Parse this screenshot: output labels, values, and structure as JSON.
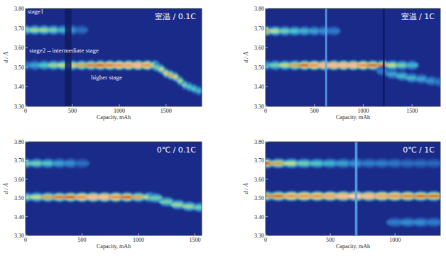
{
  "chart_data": [
    {
      "type": "heatmap",
      "title": "室温 / 0.1C",
      "x_label": "Capacity, mAh",
      "y_label": "d / Å",
      "xlim": [
        0,
        1880
      ],
      "xticks": [
        0,
        500,
        1000,
        1500
      ],
      "ylim": [
        3.3,
        3.8
      ],
      "yticks": [
        {
          "value": 3.3,
          "label": "3.30"
        },
        {
          "value": 3.4,
          "label": "3.40"
        },
        {
          "value": 3.5,
          "label": "3.50"
        },
        {
          "value": 3.6,
          "label": "3.60"
        },
        {
          "value": 3.7,
          "label": "3.70"
        },
        {
          "value": 3.8,
          "label": "3.80"
        }
      ],
      "zlim": [
        0,
        1
      ],
      "ridges": [
        {
          "x": [
            0,
            100,
            200,
            300,
            400,
            500,
            600
          ],
          "y": [
            3.69,
            3.69,
            3.69,
            3.69,
            3.69,
            3.69,
            3.69
          ],
          "intensity": [
            0.55,
            0.6,
            0.6,
            0.55,
            0.45,
            0.35,
            0.25
          ]
        },
        {
          "x": [
            0,
            100,
            200,
            300,
            400,
            500,
            600,
            700,
            800,
            900,
            1000,
            1100,
            1200,
            1300,
            1380
          ],
          "y": [
            3.51,
            3.51,
            3.51,
            3.51,
            3.51,
            3.51,
            3.51,
            3.51,
            3.51,
            3.51,
            3.51,
            3.51,
            3.51,
            3.51,
            3.51
          ],
          "intensity": [
            0.3,
            0.4,
            0.5,
            0.6,
            0.65,
            0.7,
            0.75,
            0.8,
            0.85,
            0.88,
            0.9,
            0.92,
            0.95,
            0.9,
            0.7
          ]
        },
        {
          "x": [
            1400,
            1450,
            1500,
            1550,
            1600,
            1650,
            1700,
            1750,
            1800,
            1850
          ],
          "y": [
            3.5,
            3.49,
            3.47,
            3.46,
            3.45,
            3.43,
            3.41,
            3.4,
            3.39,
            3.38
          ],
          "intensity": [
            0.55,
            0.65,
            0.7,
            0.75,
            0.7,
            0.6,
            0.55,
            0.5,
            0.5,
            0.45
          ]
        }
      ],
      "stripes": [
        {
          "x": [
            420,
            490
          ],
          "color": "#101c5e"
        }
      ],
      "annotations": [
        {
          "text": "stage1",
          "x": 20,
          "y": 3.785
        },
        {
          "text": "stage2→intermediate stage",
          "x": 40,
          "y": 3.585
        },
        {
          "text": "higher stage",
          "x": 700,
          "y": 3.45
        }
      ]
    },
    {
      "type": "heatmap",
      "title": "室温 / 1C",
      "x_label": "Capacity, mAh",
      "y_label": "d / Å",
      "xlim": [
        0,
        1790
      ],
      "xticks": [
        0,
        500,
        1000,
        1500
      ],
      "ylim": [
        3.3,
        3.8
      ],
      "yticks": [
        {
          "value": 3.3,
          "label": "3.30"
        },
        {
          "value": 3.4,
          "label": "3.40"
        },
        {
          "value": 3.5,
          "label": "3.50"
        },
        {
          "value": 3.6,
          "label": "3.60"
        },
        {
          "value": 3.7,
          "label": "3.70"
        },
        {
          "value": 3.8,
          "label": "3.80"
        }
      ],
      "zlim": [
        0,
        1
      ],
      "ridges": [
        {
          "x": [
            0,
            100,
            200,
            300,
            400,
            500,
            600,
            700
          ],
          "y": [
            3.685,
            3.685,
            3.685,
            3.685,
            3.685,
            3.685,
            3.685,
            3.685
          ],
          "intensity": [
            0.75,
            0.65,
            0.55,
            0.5,
            0.45,
            0.4,
            0.35,
            0.3
          ]
        },
        {
          "x": [
            0,
            100,
            200,
            300,
            400,
            500,
            600,
            700,
            800,
            900,
            1000,
            1100,
            1200,
            1300,
            1400,
            1500
          ],
          "y": [
            3.51,
            3.51,
            3.51,
            3.51,
            3.51,
            3.51,
            3.51,
            3.51,
            3.51,
            3.51,
            3.51,
            3.51,
            3.51,
            3.51,
            3.51,
            3.51
          ],
          "intensity": [
            0.45,
            0.55,
            0.65,
            0.75,
            0.85,
            0.9,
            0.95,
            0.95,
            0.95,
            0.95,
            0.9,
            0.85,
            0.8,
            0.65,
            0.55,
            0.45
          ]
        },
        {
          "x": [
            1200,
            1300,
            1400,
            1500,
            1600,
            1700,
            1780
          ],
          "y": [
            3.48,
            3.465,
            3.455,
            3.445,
            3.44,
            3.43,
            3.425
          ],
          "intensity": [
            0.3,
            0.4,
            0.45,
            0.45,
            0.4,
            0.35,
            0.3
          ]
        }
      ],
      "stripes": [
        {
          "x": [
            610,
            630
          ],
          "color": "#5aa8f0"
        },
        {
          "x": [
            1200,
            1220
          ],
          "color": "#0c1660"
        }
      ],
      "annotations": []
    },
    {
      "type": "heatmap",
      "title": "0℃ / 0.1C",
      "x_label": "Capacity, mAh",
      "y_label": "d / Å",
      "xlim": [
        0,
        1560
      ],
      "xticks": [
        0,
        500,
        1000,
        1500
      ],
      "ylim": [
        3.3,
        3.8
      ],
      "yticks": [
        {
          "value": 3.3,
          "label": "3.30"
        },
        {
          "value": 3.4,
          "label": "3.40"
        },
        {
          "value": 3.5,
          "label": "3.50"
        },
        {
          "value": 3.6,
          "label": "3.60"
        },
        {
          "value": 3.7,
          "label": "3.70"
        },
        {
          "value": 3.8,
          "label": "3.80"
        }
      ],
      "zlim": [
        0,
        1
      ],
      "ridges": [
        {
          "x": [
            0,
            100,
            200,
            300,
            400,
            500
          ],
          "y": [
            3.685,
            3.685,
            3.685,
            3.685,
            3.685,
            3.685
          ],
          "intensity": [
            0.55,
            0.55,
            0.5,
            0.4,
            0.35,
            0.25
          ]
        },
        {
          "x": [
            0,
            100,
            200,
            300,
            400,
            500,
            600,
            700,
            800,
            900,
            1000,
            1100
          ],
          "y": [
            3.505,
            3.505,
            3.505,
            3.505,
            3.505,
            3.505,
            3.505,
            3.505,
            3.505,
            3.505,
            3.505,
            3.505
          ],
          "intensity": [
            0.6,
            0.65,
            0.75,
            0.8,
            0.85,
            0.9,
            0.95,
            0.95,
            0.9,
            0.85,
            0.75,
            0.65
          ]
        },
        {
          "x": [
            1150,
            1250,
            1350,
            1450,
            1550
          ],
          "y": [
            3.5,
            3.48,
            3.465,
            3.455,
            3.45
          ],
          "intensity": [
            0.55,
            0.55,
            0.6,
            0.6,
            0.55
          ]
        }
      ],
      "stripes": [],
      "annotations": []
    },
    {
      "type": "heatmap",
      "title": "0℃ / 1C",
      "x_label": "Capacity, mAh",
      "y_label": "d / Å",
      "xlim": [
        0,
        1350
      ],
      "xticks": [
        0,
        500,
        1000
      ],
      "ylim": [
        3.3,
        3.8
      ],
      "yticks": [
        {
          "value": 3.3,
          "label": "3.30"
        },
        {
          "value": 3.4,
          "label": "3.40"
        },
        {
          "value": 3.5,
          "label": "3.50"
        },
        {
          "value": 3.6,
          "label": "3.60"
        },
        {
          "value": 3.7,
          "label": "3.70"
        },
        {
          "value": 3.8,
          "label": "3.80"
        }
      ],
      "zlim": [
        0,
        1
      ],
      "ridges": [
        {
          "x": [
            0,
            100,
            200,
            300,
            400,
            500,
            600,
            700,
            800,
            900,
            1000,
            1100,
            1200,
            1300
          ],
          "y": [
            3.685,
            3.685,
            3.685,
            3.685,
            3.685,
            3.685,
            3.685,
            3.685,
            3.685,
            3.685,
            3.685,
            3.685,
            3.685,
            3.685
          ],
          "intensity": [
            0.85,
            0.75,
            0.65,
            0.55,
            0.5,
            0.45,
            0.4,
            0.35,
            0.3,
            0.3,
            0.28,
            0.25,
            0.25,
            0.22
          ]
        },
        {
          "x": [
            0,
            100,
            200,
            300,
            400,
            500,
            600,
            700,
            800,
            900,
            1000,
            1100,
            1200,
            1300
          ],
          "y": [
            3.51,
            3.51,
            3.51,
            3.51,
            3.51,
            3.51,
            3.51,
            3.51,
            3.51,
            3.51,
            3.51,
            3.51,
            3.51,
            3.51
          ],
          "intensity": [
            0.8,
            0.85,
            0.9,
            0.9,
            0.9,
            0.92,
            0.95,
            0.98,
            0.95,
            0.92,
            0.9,
            0.88,
            0.85,
            0.85
          ]
        },
        {
          "x": [
            1000,
            1100,
            1200,
            1300
          ],
          "y": [
            3.37,
            3.37,
            3.37,
            3.37
          ],
          "intensity": [
            0.3,
            0.35,
            0.35,
            0.3
          ]
        }
      ],
      "stripes": [
        {
          "x": [
            690,
            710
          ],
          "color": "#5aa8f0"
        }
      ],
      "annotations": []
    }
  ]
}
